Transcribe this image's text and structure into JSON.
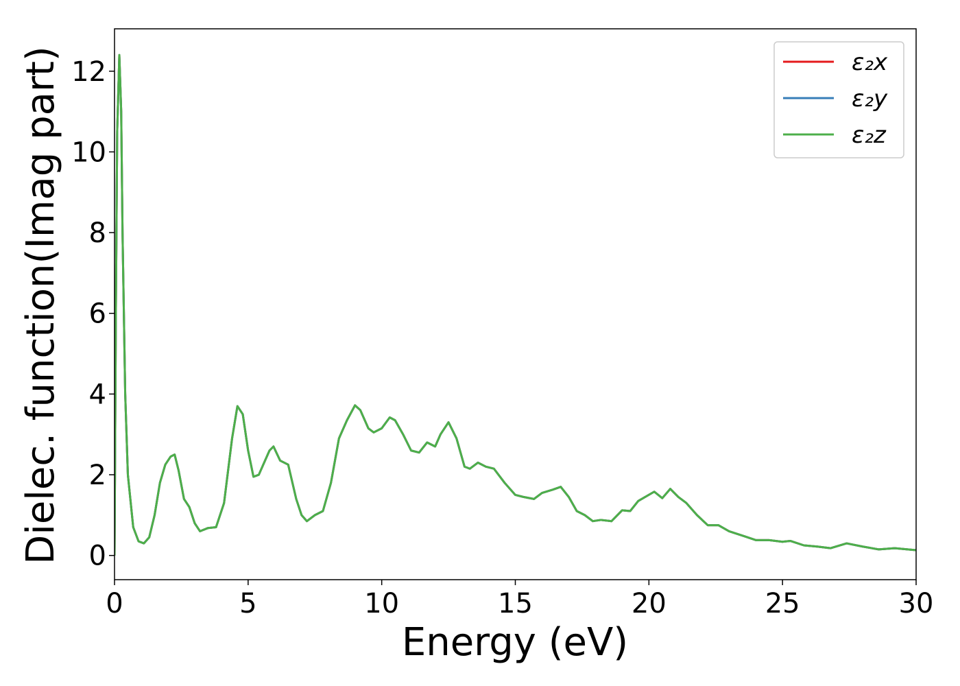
{
  "chart_data": {
    "type": "line",
    "xlabel": "Energy (eV)",
    "ylabel": "Dielec. function(Imag part)",
    "xlim": [
      0,
      30
    ],
    "ylim": [
      -0.6,
      13.05
    ],
    "xticks": [
      0,
      5,
      10,
      15,
      20,
      25,
      30
    ],
    "yticks": [
      0,
      2,
      4,
      6,
      8,
      10,
      12
    ],
    "legend": "upper right",
    "x": [
      0.0,
      0.05,
      0.1,
      0.18,
      0.25,
      0.3,
      0.4,
      0.5,
      0.7,
      0.9,
      1.1,
      1.3,
      1.5,
      1.7,
      1.9,
      2.1,
      2.25,
      2.4,
      2.6,
      2.8,
      3.0,
      3.2,
      3.5,
      3.8,
      4.1,
      4.4,
      4.6,
      4.8,
      5.0,
      5.2,
      5.4,
      5.6,
      5.8,
      5.95,
      6.2,
      6.5,
      6.8,
      7.0,
      7.2,
      7.5,
      7.8,
      8.1,
      8.4,
      8.7,
      9.0,
      9.2,
      9.5,
      9.7,
      10.0,
      10.3,
      10.5,
      10.8,
      11.1,
      11.4,
      11.7,
      12.0,
      12.2,
      12.5,
      12.8,
      13.1,
      13.3,
      13.6,
      13.9,
      14.2,
      14.6,
      15.0,
      15.3,
      15.7,
      16.0,
      16.4,
      16.7,
      17.0,
      17.3,
      17.6,
      17.9,
      18.2,
      18.6,
      19.0,
      19.3,
      19.6,
      20.2,
      20.5,
      20.8,
      21.1,
      21.4,
      21.8,
      22.2,
      22.6,
      23.0,
      23.6,
      24.0,
      24.5,
      25.0,
      25.3,
      25.8,
      26.3,
      26.8,
      27.4,
      28.0,
      28.6,
      29.2,
      30.0
    ],
    "series": [
      {
        "name": "ε₂x",
        "color": "#e41a1c",
        "values": [
          0.0,
          6.0,
          10.5,
          12.4,
          11.0,
          8.0,
          4.0,
          2.0,
          0.7,
          0.35,
          0.3,
          0.45,
          1.0,
          1.8,
          2.25,
          2.45,
          2.5,
          2.1,
          1.4,
          1.2,
          0.8,
          0.6,
          0.68,
          0.7,
          1.3,
          2.9,
          3.7,
          3.5,
          2.6,
          1.95,
          2.0,
          2.3,
          2.6,
          2.7,
          2.35,
          2.25,
          1.4,
          1.0,
          0.85,
          1.0,
          1.1,
          1.8,
          2.9,
          3.35,
          3.72,
          3.6,
          3.15,
          3.05,
          3.15,
          3.42,
          3.35,
          3.0,
          2.6,
          2.55,
          2.8,
          2.7,
          3.0,
          3.3,
          2.9,
          2.2,
          2.15,
          2.3,
          2.2,
          2.15,
          1.8,
          1.5,
          1.45,
          1.4,
          1.55,
          1.63,
          1.7,
          1.45,
          1.1,
          1.0,
          0.85,
          0.88,
          0.85,
          1.12,
          1.1,
          1.35,
          1.58,
          1.42,
          1.65,
          1.45,
          1.3,
          1.0,
          0.75,
          0.75,
          0.6,
          0.47,
          0.38,
          0.38,
          0.34,
          0.36,
          0.25,
          0.22,
          0.18,
          0.3,
          0.22,
          0.15,
          0.18,
          0.13
        ]
      },
      {
        "name": "ε₂y",
        "color": "#377eb8",
        "values": [
          0.0,
          6.0,
          10.5,
          12.4,
          11.0,
          8.0,
          4.0,
          2.0,
          0.7,
          0.35,
          0.3,
          0.45,
          1.0,
          1.8,
          2.25,
          2.45,
          2.5,
          2.1,
          1.4,
          1.2,
          0.8,
          0.6,
          0.68,
          0.7,
          1.3,
          2.9,
          3.7,
          3.5,
          2.6,
          1.95,
          2.0,
          2.3,
          2.6,
          2.7,
          2.35,
          2.25,
          1.4,
          1.0,
          0.85,
          1.0,
          1.1,
          1.8,
          2.9,
          3.35,
          3.72,
          3.6,
          3.15,
          3.05,
          3.15,
          3.42,
          3.35,
          3.0,
          2.6,
          2.55,
          2.8,
          2.7,
          3.0,
          3.3,
          2.9,
          2.2,
          2.15,
          2.3,
          2.2,
          2.15,
          1.8,
          1.5,
          1.45,
          1.4,
          1.55,
          1.63,
          1.7,
          1.45,
          1.1,
          1.0,
          0.85,
          0.88,
          0.85,
          1.12,
          1.1,
          1.35,
          1.58,
          1.42,
          1.65,
          1.45,
          1.3,
          1.0,
          0.75,
          0.75,
          0.6,
          0.47,
          0.38,
          0.38,
          0.34,
          0.36,
          0.25,
          0.22,
          0.18,
          0.3,
          0.22,
          0.15,
          0.18,
          0.13
        ]
      },
      {
        "name": "ε₂z",
        "color": "#4daf4a",
        "values": [
          0.0,
          6.0,
          10.5,
          12.4,
          11.0,
          8.0,
          4.0,
          2.0,
          0.7,
          0.35,
          0.3,
          0.45,
          1.0,
          1.8,
          2.25,
          2.45,
          2.5,
          2.1,
          1.4,
          1.2,
          0.8,
          0.6,
          0.68,
          0.7,
          1.3,
          2.9,
          3.7,
          3.5,
          2.6,
          1.95,
          2.0,
          2.3,
          2.6,
          2.7,
          2.35,
          2.25,
          1.4,
          1.0,
          0.85,
          1.0,
          1.1,
          1.8,
          2.9,
          3.35,
          3.72,
          3.6,
          3.15,
          3.05,
          3.15,
          3.42,
          3.35,
          3.0,
          2.6,
          2.55,
          2.8,
          2.7,
          3.0,
          3.3,
          2.9,
          2.2,
          2.15,
          2.3,
          2.2,
          2.15,
          1.8,
          1.5,
          1.45,
          1.4,
          1.55,
          1.63,
          1.7,
          1.45,
          1.1,
          1.0,
          0.85,
          0.88,
          0.85,
          1.12,
          1.1,
          1.35,
          1.58,
          1.42,
          1.65,
          1.45,
          1.3,
          1.0,
          0.75,
          0.75,
          0.6,
          0.47,
          0.38,
          0.38,
          0.34,
          0.36,
          0.25,
          0.22,
          0.18,
          0.3,
          0.22,
          0.15,
          0.18,
          0.13
        ]
      }
    ]
  }
}
